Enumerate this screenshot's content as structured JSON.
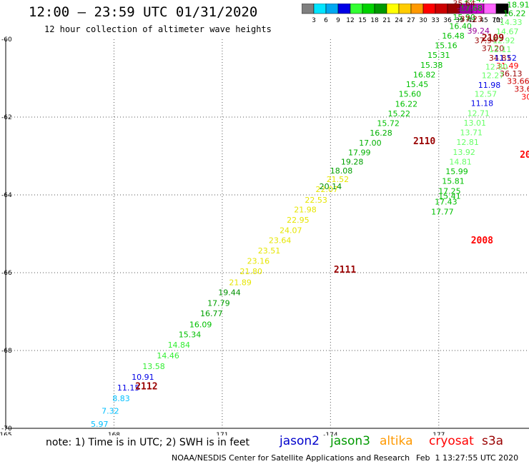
{
  "title": "12:00 – 23:59 UTC 01/31/2020",
  "subtitle": "12 hour collection of altimeter wave heights",
  "legend": {
    "unit": "(ft)",
    "bins": [
      {
        "color": "#7f7f7f",
        "label": "3"
      },
      {
        "color": "#00e5ff",
        "label": "6"
      },
      {
        "color": "#00a8f0",
        "label": "9"
      },
      {
        "color": "#0000e6",
        "label": "12"
      },
      {
        "color": "#33ff33",
        "label": "15"
      },
      {
        "color": "#00d200",
        "label": "18"
      },
      {
        "color": "#009900",
        "label": "21"
      },
      {
        "color": "#ffff00",
        "label": "24"
      },
      {
        "color": "#ffcc00",
        "label": "27"
      },
      {
        "color": "#ff9900",
        "label": "30"
      },
      {
        "color": "#ff0000",
        "label": "33"
      },
      {
        "color": "#cc0000",
        "label": "36"
      },
      {
        "color": "#990000",
        "label": "39"
      },
      {
        "color": "#990099",
        "label": "42"
      },
      {
        "color": "#cc00cc",
        "label": "45"
      },
      {
        "color": "#ff66ff",
        "label": "70"
      },
      {
        "color": "#000000",
        "label": ""
      }
    ]
  },
  "note": "note: 1) Time is in UTC; 2) SWH is in feet",
  "satellites": [
    {
      "name": "jason2",
      "color": "#0000cc"
    },
    {
      "name": "jason3",
      "color": "#009900"
    },
    {
      "name": "altika",
      "color": "#ff9900"
    },
    {
      "name": "cryosat",
      "color": "#ff0000"
    },
    {
      "name": "s3a",
      "color": "#990000"
    }
  ],
  "footer": "NOAA/NESDIS Center for Satellite Applications and Research",
  "footer_timestamp": "Feb  1 13:27:55 UTC 2020",
  "chart_data": {
    "type": "scatter",
    "xlabel": "",
    "ylabel": "",
    "x_ticks": [
      "165",
      "168",
      "171",
      "-174",
      "177"
    ],
    "y_ticks": [
      "-60",
      "-62",
      "-64",
      "-66",
      "-68",
      "-70"
    ],
    "xlim": [
      165,
      179.5
    ],
    "ylim": [
      -70,
      -60
    ],
    "grid": true,
    "pass_labels": [
      {
        "label": "2109",
        "lon": 178.5,
        "lat": -60.05,
        "color": "#990000"
      },
      {
        "label": "2110",
        "lon": 176.6,
        "lat": -62.7,
        "color": "#990000"
      },
      {
        "label": "2111",
        "lon": 174.4,
        "lat": -66.0,
        "color": "#990000"
      },
      {
        "label": "2112",
        "lon": 168.9,
        "lat": -69.0,
        "color": "#990000"
      },
      {
        "label": "2008",
        "lon": 178.2,
        "lat": -65.25,
        "color": "#ff0000"
      },
      {
        "label": "20",
        "lon": 179.4,
        "lat": -63.05,
        "color": "#ff0000"
      }
    ],
    "points": [
      {
        "lon": 167.6,
        "lat": -69.96,
        "v": "5.97",
        "c": "#00bfff"
      },
      {
        "lon": 167.9,
        "lat": -69.62,
        "v": "7.32",
        "c": "#00bfff"
      },
      {
        "lon": 168.2,
        "lat": -69.3,
        "v": "8.83",
        "c": "#00bfff"
      },
      {
        "lon": 168.4,
        "lat": -69.03,
        "v": "11.15",
        "c": "#0000e6"
      },
      {
        "lon": 168.8,
        "lat": -68.75,
        "v": "10.91",
        "c": "#0000e6"
      },
      {
        "lon": 169.1,
        "lat": -68.48,
        "v": "13.58",
        "c": "#33ee33"
      },
      {
        "lon": 169.5,
        "lat": -68.2,
        "v": "14.46",
        "c": "#33ee33"
      },
      {
        "lon": 169.8,
        "lat": -67.93,
        "v": "14.84",
        "c": "#33ee33"
      },
      {
        "lon": 170.1,
        "lat": -67.66,
        "v": "15.34",
        "c": "#00c000"
      },
      {
        "lon": 170.4,
        "lat": -67.4,
        "v": "16.09",
        "c": "#00c000"
      },
      {
        "lon": 170.7,
        "lat": -67.12,
        "v": "16.77",
        "c": "#00a000"
      },
      {
        "lon": 170.9,
        "lat": -66.85,
        "v": "17.79",
        "c": "#00a000"
      },
      {
        "lon": 171.2,
        "lat": -66.58,
        "v": "19.44",
        "c": "#009000"
      },
      {
        "lon": 171.5,
        "lat": -66.32,
        "v": "21.89",
        "c": "#e6e600"
      },
      {
        "lon": 171.8,
        "lat": -66.04,
        "v": "21.80",
        "c": "#e6e600"
      },
      {
        "lon": 172.0,
        "lat": -65.77,
        "v": "23.16",
        "c": "#e6e600"
      },
      {
        "lon": 172.3,
        "lat": -65.5,
        "v": "23.51",
        "c": "#e6e600"
      },
      {
        "lon": 172.6,
        "lat": -65.24,
        "v": "23.64",
        "c": "#e6e600"
      },
      {
        "lon": 172.9,
        "lat": -64.98,
        "v": "24.07",
        "c": "#e6e600"
      },
      {
        "lon": 173.1,
        "lat": -64.72,
        "v": "22.95",
        "c": "#e6e600"
      },
      {
        "lon": 173.3,
        "lat": -64.45,
        "v": "21.98",
        "c": "#e6e600"
      },
      {
        "lon": 173.6,
        "lat": -64.2,
        "v": "22.53",
        "c": "#e6e600"
      },
      {
        "lon": 173.9,
        "lat": -63.93,
        "v": "22.07",
        "c": "#e6e600"
      },
      {
        "lon": 174.2,
        "lat": -63.67,
        "v": "21.52",
        "c": "#e6e600"
      },
      {
        "lon": 174.0,
        "lat": -63.85,
        "v": "20.14",
        "c": "#009000"
      },
      {
        "lon": 174.3,
        "lat": -63.45,
        "v": "18.08",
        "c": "#00a000"
      },
      {
        "lon": 174.6,
        "lat": -63.22,
        "v": "19.28",
        "c": "#00a000"
      },
      {
        "lon": 174.8,
        "lat": -62.98,
        "v": "17.99",
        "c": "#00b000"
      },
      {
        "lon": 175.1,
        "lat": -62.73,
        "v": "17.00",
        "c": "#00b000"
      },
      {
        "lon": 175.4,
        "lat": -62.48,
        "v": "16.28",
        "c": "#00b000"
      },
      {
        "lon": 175.6,
        "lat": -62.23,
        "v": "15.72",
        "c": "#00c000"
      },
      {
        "lon": 175.9,
        "lat": -61.98,
        "v": "15.22",
        "c": "#00c000"
      },
      {
        "lon": 176.1,
        "lat": -61.73,
        "v": "16.22",
        "c": "#00c000"
      },
      {
        "lon": 176.2,
        "lat": -61.48,
        "v": "15.60",
        "c": "#00c000"
      },
      {
        "lon": 176.4,
        "lat": -61.23,
        "v": "15.45",
        "c": "#00c000"
      },
      {
        "lon": 176.6,
        "lat": -60.98,
        "v": "16.82",
        "c": "#00c000"
      },
      {
        "lon": 176.8,
        "lat": -60.73,
        "v": "15.38",
        "c": "#00c000"
      },
      {
        "lon": 177.0,
        "lat": -60.48,
        "v": "15.31",
        "c": "#00c000"
      },
      {
        "lon": 177.2,
        "lat": -60.23,
        "v": "15.16",
        "c": "#00c000"
      },
      {
        "lon": 177.4,
        "lat": -59.98,
        "v": "16.48",
        "c": "#00c000"
      },
      {
        "lon": 177.6,
        "lat": -59.73,
        "v": "16.40",
        "c": "#00c000"
      },
      {
        "lon": 177.7,
        "lat": -59.5,
        "v": "15.90",
        "c": "#00c000"
      },
      {
        "lon": 177.9,
        "lat": -59.27,
        "v": "17.68",
        "c": "#00c000"
      },
      {
        "lon": 178.0,
        "lat": -59.05,
        "v": "17.47",
        "c": "#00c000"
      },
      {
        "lon": 178.2,
        "lat": -58.85,
        "v": "18.97",
        "c": "#00c000"
      },
      {
        "lon": 177.6,
        "lat": -58.95,
        "v": "41.25",
        "c": "#990099"
      },
      {
        "lon": 177.7,
        "lat": -59.15,
        "v": "35.64",
        "c": "#990000"
      },
      {
        "lon": 177.8,
        "lat": -59.35,
        "v": "39.07",
        "c": "#990099"
      },
      {
        "lon": 177.9,
        "lat": -59.55,
        "v": "37.23",
        "c": "#990000"
      },
      {
        "lon": 178.1,
        "lat": -59.85,
        "v": "39.24",
        "c": "#990099"
      },
      {
        "lon": 178.3,
        "lat": -60.1,
        "v": "37.94",
        "c": "#990000"
      },
      {
        "lon": 178.5,
        "lat": -60.3,
        "v": "37.20",
        "c": "#990000"
      },
      {
        "lon": 178.7,
        "lat": -60.55,
        "v": "34.81",
        "c": "#990000"
      },
      {
        "lon": 178.9,
        "lat": -60.75,
        "v": "31.49",
        "c": "#ff0000"
      },
      {
        "lon": 179.0,
        "lat": -60.95,
        "v": "36.13",
        "c": "#990000"
      },
      {
        "lon": 179.2,
        "lat": -61.15,
        "v": "33.66",
        "c": "#cc0000"
      },
      {
        "lon": 179.4,
        "lat": -61.35,
        "v": "33.64",
        "c": "#cc0000"
      },
      {
        "lon": 179.6,
        "lat": -61.55,
        "v": "30.47",
        "c": "#ff0000"
      },
      {
        "lon": 179.2,
        "lat": -58.95,
        "v": "18.7",
        "c": "#00c000"
      },
      {
        "lon": 179.2,
        "lat": -59.18,
        "v": "18.91",
        "c": "#00c000"
      },
      {
        "lon": 179.1,
        "lat": -59.4,
        "v": "16.22",
        "c": "#00c000"
      },
      {
        "lon": 179.0,
        "lat": -59.63,
        "v": "14.33",
        "c": "#66ff66"
      },
      {
        "lon": 178.9,
        "lat": -59.87,
        "v": "14.67",
        "c": "#66ff66"
      },
      {
        "lon": 178.8,
        "lat": -60.1,
        "v": "12.92",
        "c": "#66ff66"
      },
      {
        "lon": 178.7,
        "lat": -60.33,
        "v": "12.11",
        "c": "#66ff66"
      },
      {
        "lon": 178.85,
        "lat": -60.55,
        "v": "11.52",
        "c": "#0000e6"
      },
      {
        "lon": 178.6,
        "lat": -60.78,
        "v": "12.80",
        "c": "#66ff66"
      },
      {
        "lon": 178.5,
        "lat": -61.0,
        "v": "12.27",
        "c": "#66ff66"
      },
      {
        "lon": 178.4,
        "lat": -61.25,
        "v": "11.98",
        "c": "#0000e6"
      },
      {
        "lon": 178.3,
        "lat": -61.48,
        "v": "12.57",
        "c": "#66ff66"
      },
      {
        "lon": 178.2,
        "lat": -61.72,
        "v": "11.18",
        "c": "#0000e6"
      },
      {
        "lon": 178.1,
        "lat": -61.97,
        "v": "12.71",
        "c": "#66ff66"
      },
      {
        "lon": 178.0,
        "lat": -62.22,
        "v": "13.01",
        "c": "#66ff66"
      },
      {
        "lon": 177.9,
        "lat": -62.47,
        "v": "13.71",
        "c": "#66ff66"
      },
      {
        "lon": 177.8,
        "lat": -62.72,
        "v": "12.81",
        "c": "#66ff66"
      },
      {
        "lon": 177.7,
        "lat": -62.97,
        "v": "13.92",
        "c": "#66ff66"
      },
      {
        "lon": 177.6,
        "lat": -63.22,
        "v": "14.81",
        "c": "#66ff66"
      },
      {
        "lon": 177.5,
        "lat": -63.47,
        "v": "15.99",
        "c": "#00c000"
      },
      {
        "lon": 177.4,
        "lat": -63.72,
        "v": "15.81",
        "c": "#00c000"
      },
      {
        "lon": 177.3,
        "lat": -63.97,
        "v": "17.25",
        "c": "#00c000"
      },
      {
        "lon": 177.3,
        "lat": -64.1,
        "v": "15.41",
        "c": "#00c000"
      },
      {
        "lon": 177.2,
        "lat": -64.25,
        "v": "17.43",
        "c": "#00c000"
      },
      {
        "lon": 177.1,
        "lat": -64.5,
        "v": "17.77",
        "c": "#00c000"
      }
    ]
  }
}
